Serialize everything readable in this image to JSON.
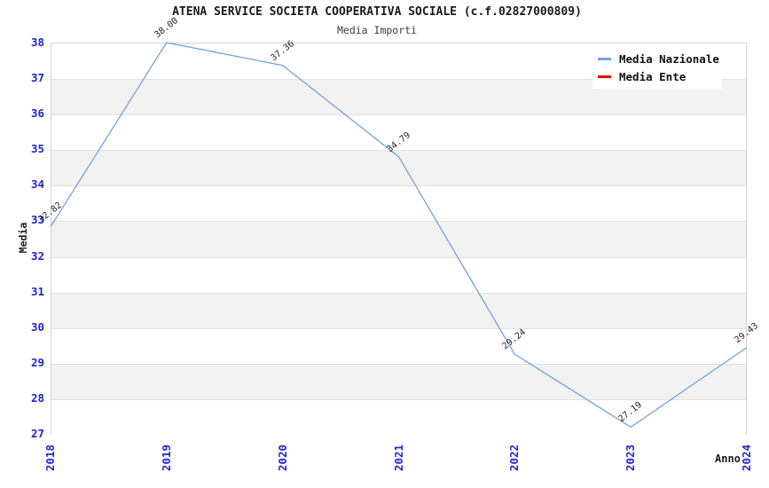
{
  "header": {
    "title": "ATENA SERVICE SOCIETA COOPERATIVA SOCIALE (c.f.02827000809)",
    "subtitle": "Media Importi"
  },
  "legend": {
    "items": [
      {
        "label": "Media Nazionale",
        "color": "#6fa3dc"
      },
      {
        "label": "Media Ente",
        "color": "#e60000"
      }
    ]
  },
  "chart_data": {
    "type": "line",
    "title": "ATENA SERVICE SOCIETA COOPERATIVA SOCIALE (c.f.02827000809)",
    "subtitle": "Media Importi",
    "xlabel": "Anno",
    "ylabel": "Media",
    "x": [
      "2018",
      "2019",
      "2020",
      "2021",
      "2022",
      "2023",
      "2024"
    ],
    "series": [
      {
        "name": "Media Nazionale",
        "color": "#6fa3dc",
        "values": [
          32.82,
          38.0,
          37.36,
          34.79,
          29.24,
          27.19,
          29.43
        ],
        "point_labels": [
          "32.82",
          "38.00",
          "37.36",
          "34.79",
          "29.24",
          "27.19",
          "29.43"
        ]
      },
      {
        "name": "Media Ente",
        "color": "#e60000",
        "values": [],
        "point_labels": []
      }
    ],
    "ylim": [
      27,
      38
    ],
    "ytick_step": 1,
    "grid": "horizontal-bands",
    "band_colors": [
      "#ffffff",
      "#f2f2f2"
    ],
    "legend_position": "top-right",
    "tick_label_color": "#2323cf"
  }
}
